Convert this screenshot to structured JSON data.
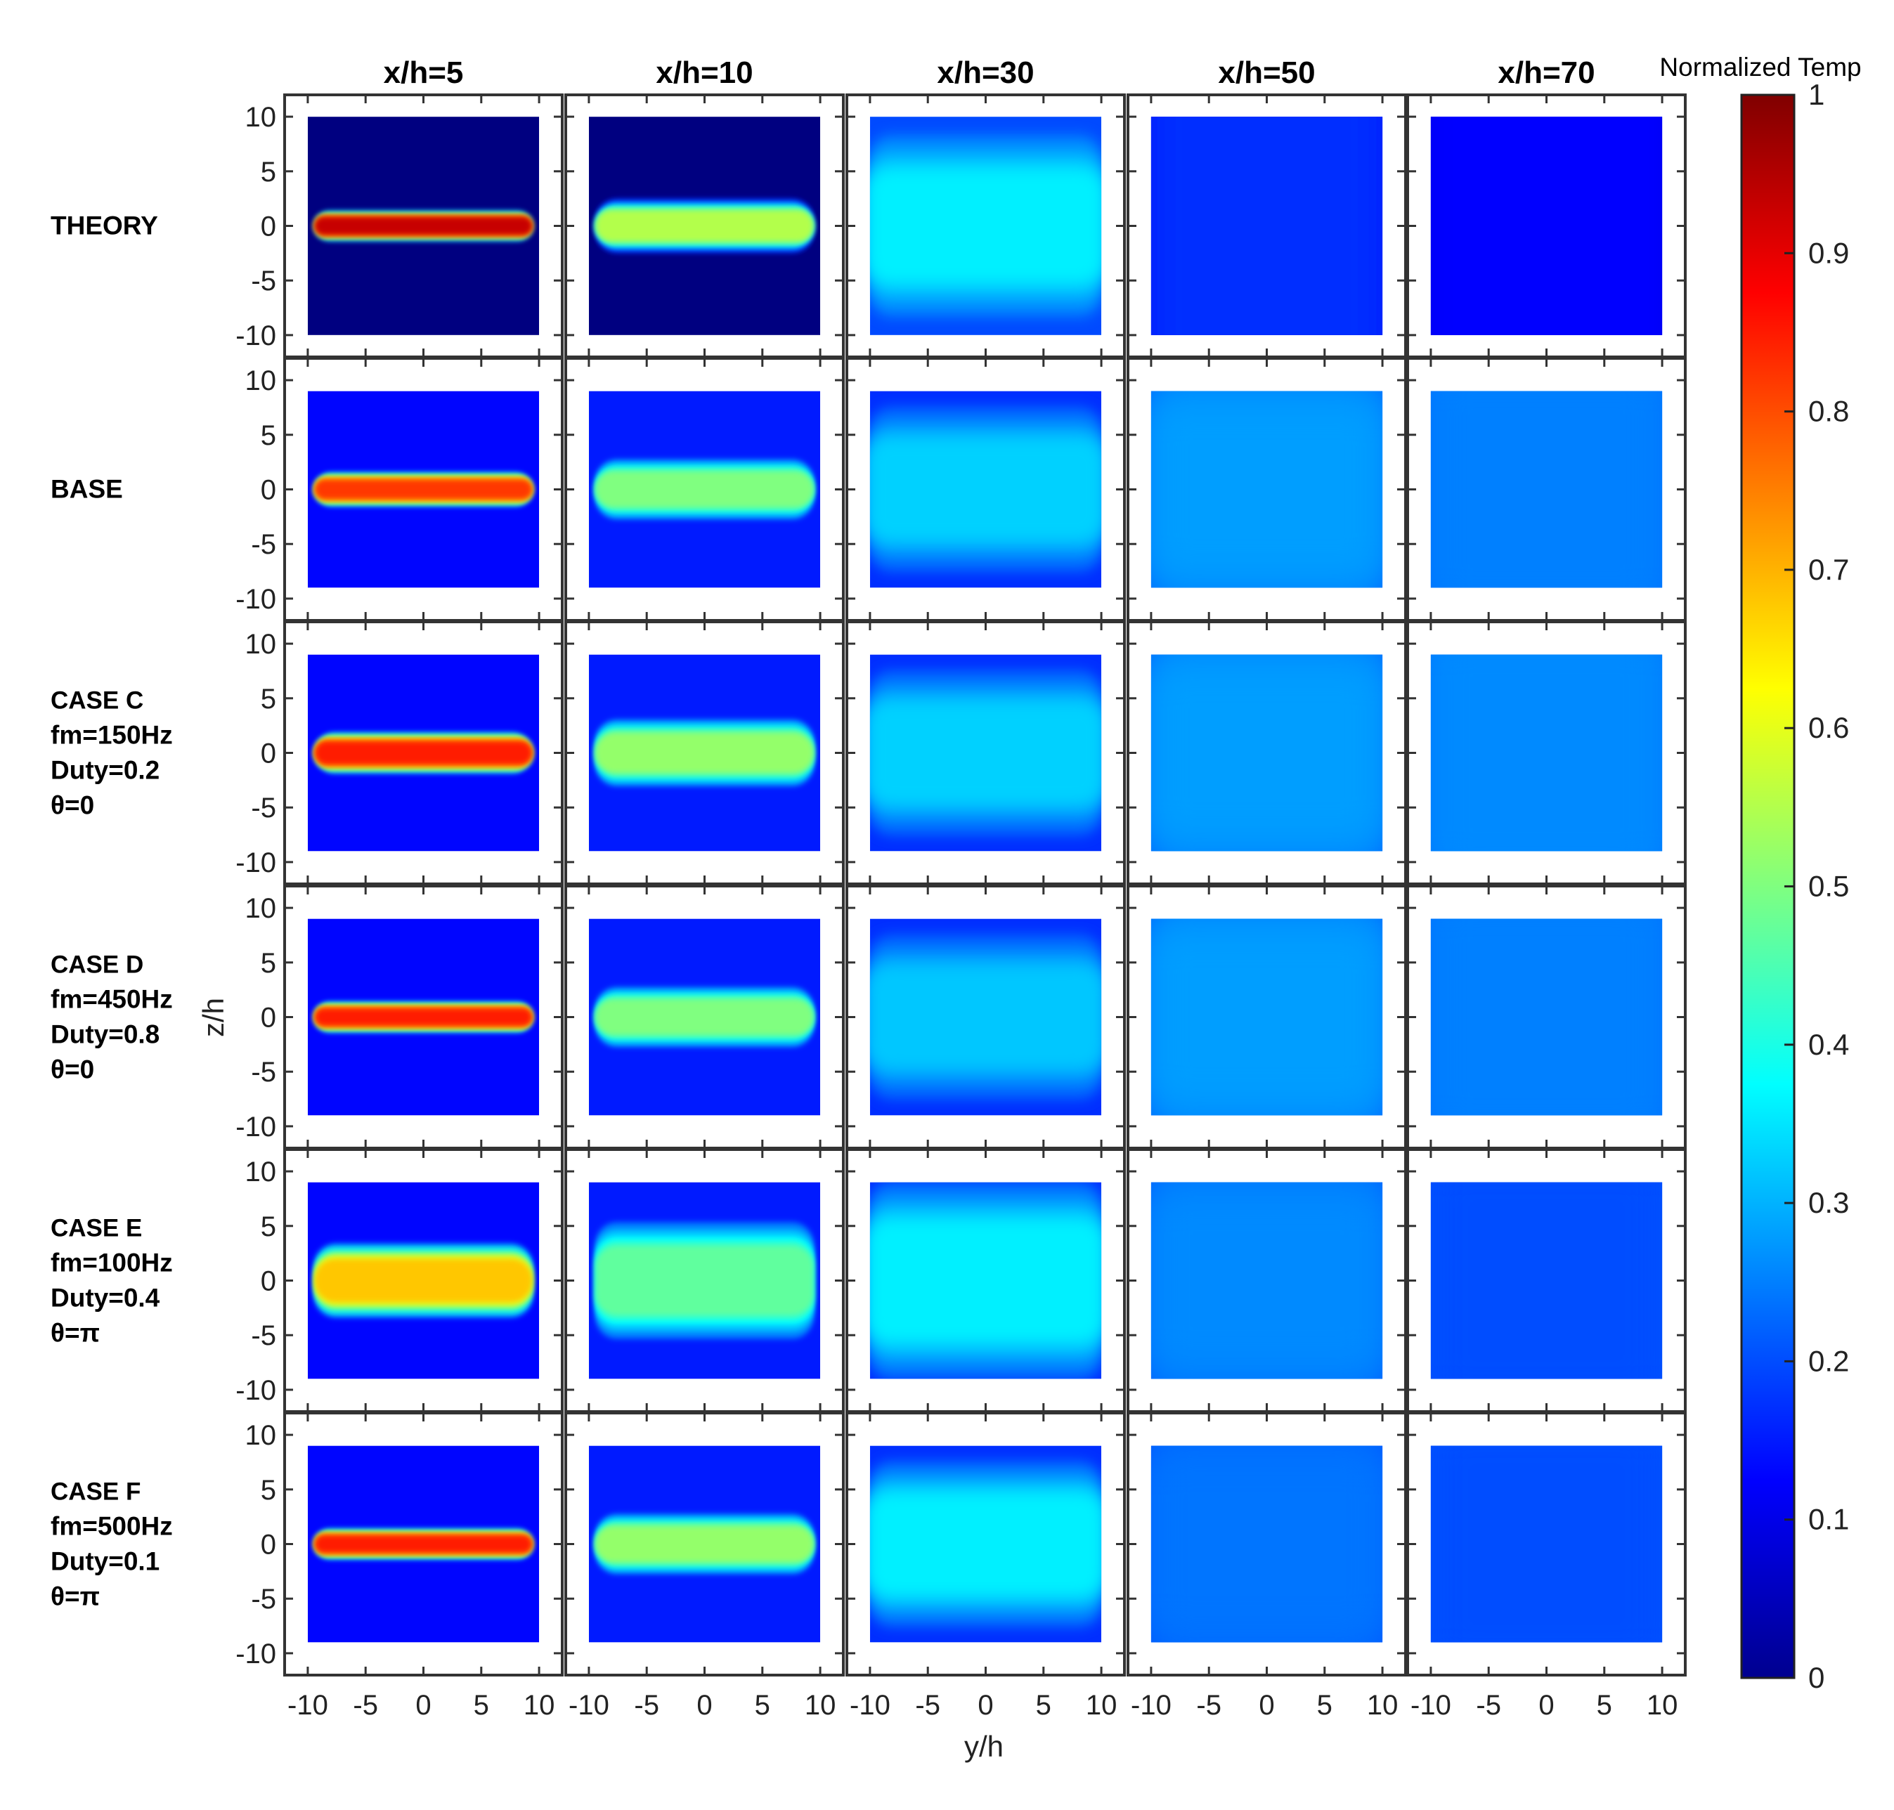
{
  "chart_data": {
    "type": "heatmap",
    "colormap": "jet",
    "colorbar": {
      "title": "Normalized Temp",
      "range": [
        0,
        1
      ],
      "ticks": [
        "0",
        "0.1",
        "0.2",
        "0.3",
        "0.4",
        "0.5",
        "0.6",
        "0.7",
        "0.8",
        "0.9",
        "1"
      ]
    },
    "xlabel": "y/h",
    "ylabel": "z/h",
    "xlim": [
      -12,
      12
    ],
    "ylim": [
      -12,
      12
    ],
    "x_ticks": [
      "-10",
      "-5",
      "0",
      "5",
      "10"
    ],
    "y_ticks": [
      "10",
      "5",
      "0",
      "-5",
      "-10"
    ],
    "columns": [
      "x/h=5",
      "x/h=10",
      "x/h=30",
      "x/h=50",
      "x/h=70"
    ],
    "rows": [
      {
        "lines": [
          "THEORY"
        ],
        "data_extent_z": [
          -10,
          10
        ],
        "peak_values": [
          0.93,
          0.55,
          0.36,
          0.17,
          0.13
        ],
        "band_halfwidth": [
          0.9,
          1.6,
          5.5,
          30,
          60
        ]
      },
      {
        "lines": [
          "BASE"
        ],
        "data_extent_z": [
          -9,
          9
        ],
        "peak_values": [
          0.82,
          0.5,
          0.33,
          0.28,
          0.25
        ],
        "band_halfwidth": [
          1.0,
          1.8,
          5.0,
          9.0,
          12.0
        ]
      },
      {
        "lines": [
          "CASE C",
          "fm=150Hz",
          "Duty=0.2",
          "θ=0"
        ],
        "data_extent_z": [
          -9,
          9
        ],
        "peak_values": [
          0.85,
          0.52,
          0.33,
          0.28,
          0.26
        ],
        "band_halfwidth": [
          1.2,
          2.0,
          5.0,
          9.0,
          12.0
        ]
      },
      {
        "lines": [
          "CASE D",
          "fm=450Hz",
          "Duty=0.8",
          "θ=0"
        ],
        "data_extent_z": [
          -9,
          9
        ],
        "peak_values": [
          0.85,
          0.5,
          0.32,
          0.28,
          0.25
        ],
        "band_halfwidth": [
          0.9,
          1.8,
          5.0,
          9.0,
          12.0
        ]
      },
      {
        "lines": [
          "CASE E",
          "fm=100Hz",
          "Duty=0.4",
          "θ=π"
        ],
        "data_extent_z": [
          -9,
          9
        ],
        "peak_values": [
          0.68,
          0.47,
          0.36,
          0.26,
          0.2
        ],
        "band_halfwidth": [
          2.2,
          3.5,
          6.0,
          9.0,
          12.0
        ]
      },
      {
        "lines": [
          "CASE F",
          "fm=500Hz",
          "Duty=0.1",
          "θ=π"
        ],
        "data_extent_z": [
          -9,
          9
        ],
        "peak_values": [
          0.85,
          0.52,
          0.36,
          0.24,
          0.2
        ],
        "band_halfwidth": [
          0.9,
          1.8,
          5.0,
          9.0,
          12.0
        ]
      }
    ]
  }
}
